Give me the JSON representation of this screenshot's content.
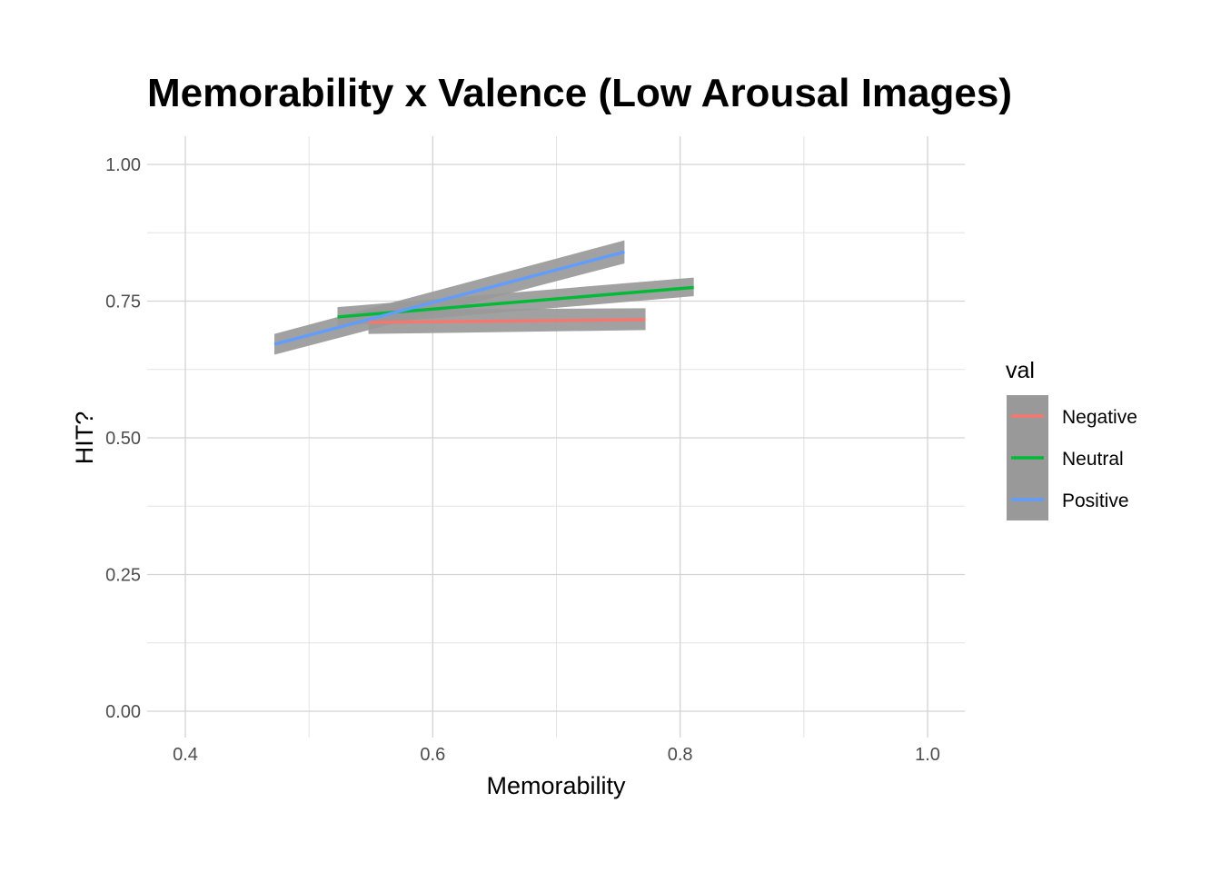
{
  "chart_data": {
    "type": "line",
    "title": "Memorability x Valence (Low Arousal Images)",
    "xlabel": "Memorability",
    "ylabel": "HIT?",
    "xlim": [
      0.37,
      1.03
    ],
    "ylim": [
      -0.05,
      1.05
    ],
    "x_ticks": [
      0.4,
      0.6,
      0.8,
      1.0
    ],
    "x_tick_labels": [
      "0.4",
      "0.6",
      "0.8",
      "1.0"
    ],
    "x_minor_ticks": [
      0.5,
      0.7,
      0.9
    ],
    "y_ticks": [
      0.0,
      0.25,
      0.5,
      0.75,
      1.0
    ],
    "y_tick_labels": [
      "0.00",
      "0.25",
      "0.50",
      "0.75",
      "1.00"
    ],
    "y_minor_ticks": [
      0.125,
      0.375,
      0.625,
      0.875
    ],
    "grid": true,
    "legend": {
      "title": "val",
      "placement": "right"
    },
    "ribbon_color": "#999999",
    "series": [
      {
        "name": "Negative",
        "color": "#F8766D",
        "x": [
          0.548,
          0.772
        ],
        "y": [
          0.711,
          0.716
        ],
        "lower": [
          0.69,
          0.697
        ],
        "upper": [
          0.734,
          0.737
        ]
      },
      {
        "name": "Neutral",
        "color": "#00BA38",
        "x": [
          0.523,
          0.811
        ],
        "y": [
          0.721,
          0.775
        ],
        "lower": [
          0.704,
          0.759
        ],
        "upper": [
          0.739,
          0.793
        ]
      },
      {
        "name": "Positive",
        "color": "#619CFF",
        "x": [
          0.472,
          0.755
        ],
        "y": [
          0.671,
          0.84
        ],
        "lower": [
          0.652,
          0.819
        ],
        "upper": [
          0.69,
          0.861
        ]
      }
    ]
  }
}
